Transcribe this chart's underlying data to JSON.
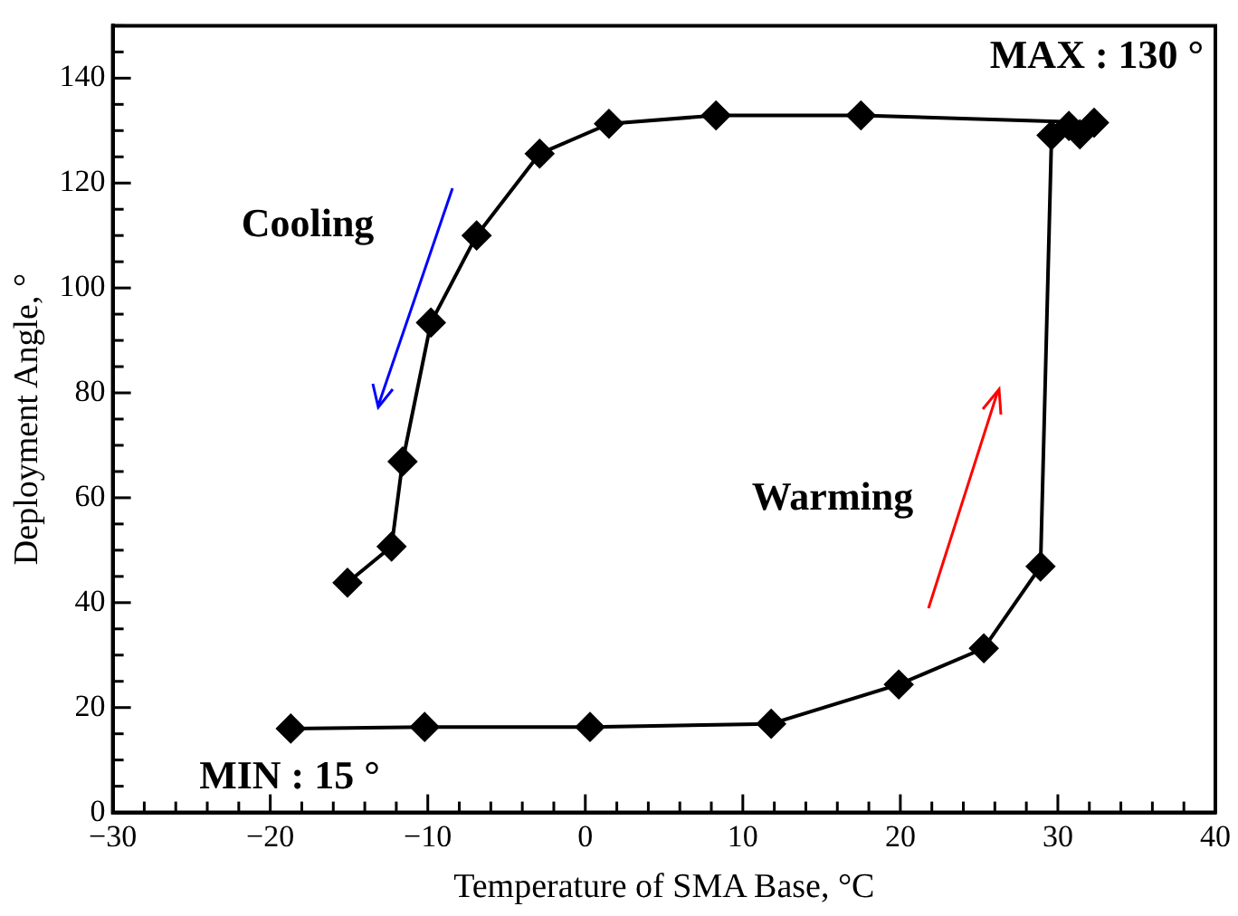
{
  "chart_data": {
    "type": "scatter",
    "xlabel": "Temperature of SMA Base, °C",
    "ylabel": "Deployment Angle, °",
    "xlim": [
      -30,
      40
    ],
    "ylim": [
      0,
      150
    ],
    "xticks": [
      {
        "value": -30,
        "label": "−30"
      },
      {
        "value": -28,
        "label": null
      },
      {
        "value": -26,
        "label": null
      },
      {
        "value": -24,
        "label": null
      },
      {
        "value": -22,
        "label": null
      },
      {
        "value": -20,
        "label": "−20"
      },
      {
        "value": -18,
        "label": null
      },
      {
        "value": -16,
        "label": null
      },
      {
        "value": -14,
        "label": null
      },
      {
        "value": -12,
        "label": null
      },
      {
        "value": -10,
        "label": "−10"
      },
      {
        "value": -8,
        "label": null
      },
      {
        "value": -6,
        "label": null
      },
      {
        "value": -4,
        "label": null
      },
      {
        "value": -2,
        "label": null
      },
      0,
      {
        "value": 2,
        "label": null
      },
      {
        "value": 4,
        "label": null
      },
      {
        "value": 6,
        "label": null
      },
      {
        "value": 8,
        "label": null
      },
      10,
      {
        "value": 12,
        "label": null
      },
      {
        "value": 14,
        "label": null
      },
      {
        "value": 16,
        "label": null
      },
      {
        "value": 18,
        "label": null
      },
      20,
      {
        "value": 22,
        "label": null
      },
      {
        "value": 24,
        "label": null
      },
      {
        "value": 26,
        "label": null
      },
      {
        "value": 28,
        "label": null
      },
      30,
      {
        "value": 32,
        "label": null
      },
      {
        "value": 34,
        "label": null
      },
      {
        "value": 36,
        "label": null
      },
      {
        "value": 38,
        "label": null
      },
      40
    ],
    "yticks": [
      0,
      {
        "value": 5,
        "label": null
      },
      {
        "value": 10,
        "label": null
      },
      {
        "value": 15,
        "label": null
      },
      20,
      {
        "value": 25,
        "label": null
      },
      {
        "value": 30,
        "label": null
      },
      {
        "value": 35,
        "label": null
      },
      40,
      {
        "value": 45,
        "label": null
      },
      {
        "value": 50,
        "label": null
      },
      {
        "value": 55,
        "label": null
      },
      60,
      {
        "value": 65,
        "label": null
      },
      {
        "value": 70,
        "label": null
      },
      {
        "value": 75,
        "label": null
      },
      80,
      {
        "value": 85,
        "label": null
      },
      {
        "value": 90,
        "label": null
      },
      {
        "value": 95,
        "label": null
      },
      100,
      {
        "value": 105,
        "label": null
      },
      {
        "value": 110,
        "label": null
      },
      {
        "value": 115,
        "label": null
      },
      120,
      {
        "value": 125,
        "label": null
      },
      {
        "value": 130,
        "label": null
      },
      {
        "value": 135,
        "label": null
      },
      140,
      {
        "value": 145,
        "label": null
      },
      {
        "value": 150,
        "label": null
      }
    ],
    "grid": false,
    "legend": false,
    "marker": "diamond",
    "line_style": "solid",
    "series": [
      {
        "type": "line",
        "color": "#000000",
        "x": [
          -18.7,
          -10.2,
          0.3,
          11.8,
          19.9,
          25.3,
          28.9,
          29.6,
          30.7,
          31.4,
          32.3,
          17.5,
          8.3,
          1.5,
          -2.9,
          -6.9,
          -9.8,
          -11.6,
          -12.3,
          -15.1
        ],
        "values": [
          16.0,
          16.3,
          16.3,
          16.9,
          24.4,
          31.3,
          46.9,
          129.1,
          130.9,
          129.3,
          131.5,
          132.9,
          132.9,
          131.3,
          125.6,
          110,
          93.4,
          66.9,
          50.7,
          43.8
        ]
      }
    ],
    "annotations": [
      "Cooling",
      "Warming",
      "MAX : 130 °",
      "MIN : 15 °"
    ]
  }
}
